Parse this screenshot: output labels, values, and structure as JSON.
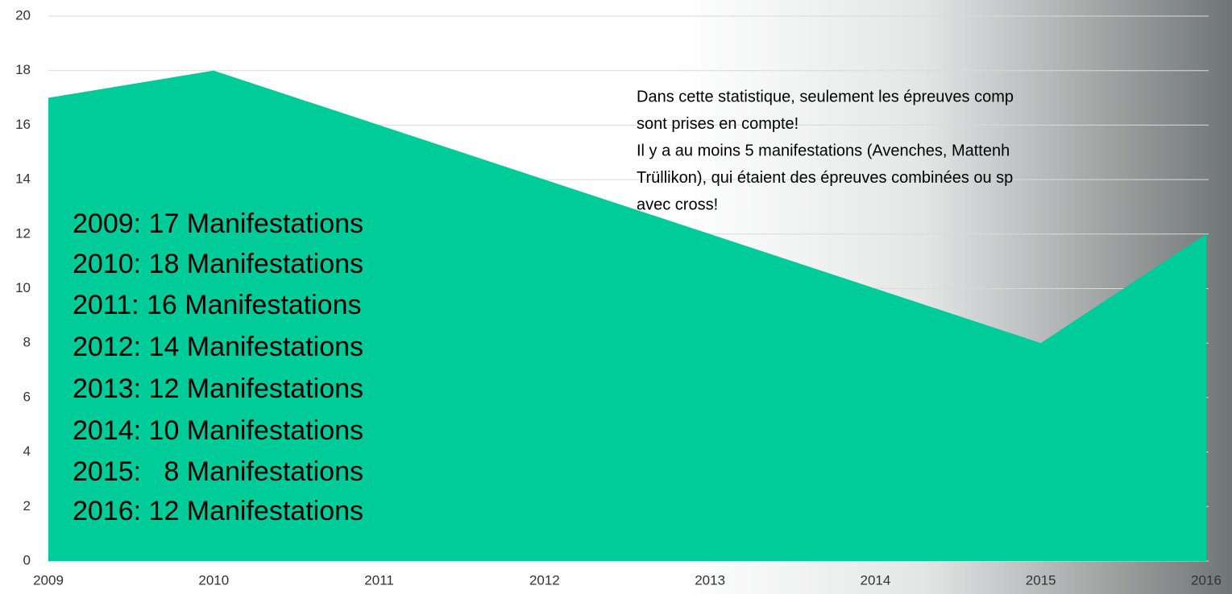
{
  "chart_data": {
    "type": "area",
    "x": [
      2009,
      2010,
      2011,
      2012,
      2013,
      2014,
      2015,
      2016
    ],
    "values": [
      17,
      18,
      16,
      14,
      12,
      10,
      8,
      12
    ],
    "color": "#00cc99",
    "xlim": [
      2009,
      2016
    ],
    "xticks": [
      2009,
      2010,
      2011,
      2012,
      2013,
      2014,
      2015,
      2016
    ],
    "ylim": [
      0,
      20
    ],
    "yticks": [
      0,
      2,
      4,
      6,
      8,
      10,
      12,
      14,
      16,
      18,
      20
    ],
    "grid": true,
    "summary_lines": [
      "2009: 17 Manifestations",
      "2010: 18 Manifestations",
      "2011: 16 Manifestations",
      "2012: 14 Manifestations",
      "2013: 12 Manifestations",
      "2014: 10 Manifestations",
      "2015:   8 Manifestations",
      "2016: 12 Manifestations"
    ],
    "note_lines": [
      "Dans cette statistique, seulement les épreuves comp",
      "sont prises en compte!",
      "Il y a au moins 5 manifestations (Avenches, Mattenh",
      "Trüllikon), qui étaient des épreuves combinées ou sp",
      "avec cross!"
    ]
  }
}
